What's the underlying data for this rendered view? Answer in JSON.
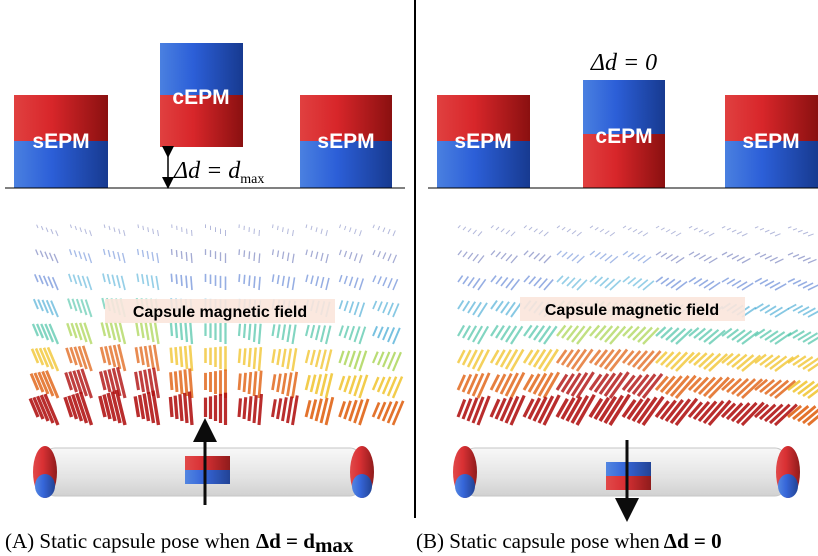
{
  "left": {
    "magnets": [
      "sEPM",
      "cEPM",
      "sEPM"
    ],
    "gap_label": "Δd = d",
    "gap_sub": "max",
    "field_label": "Capsule magnetic field",
    "caption": "(A) Static capsule pose when",
    "caption_eq": "Δd = d",
    "caption_sub": "max"
  },
  "right": {
    "gap_label": "Δd = 0",
    "magnets": [
      "sEPM",
      "cEPM",
      "sEPM"
    ],
    "field_label": "Capsule magnetic field",
    "caption": "(B) Static capsule pose when",
    "caption_eq": "Δd = 0"
  }
}
